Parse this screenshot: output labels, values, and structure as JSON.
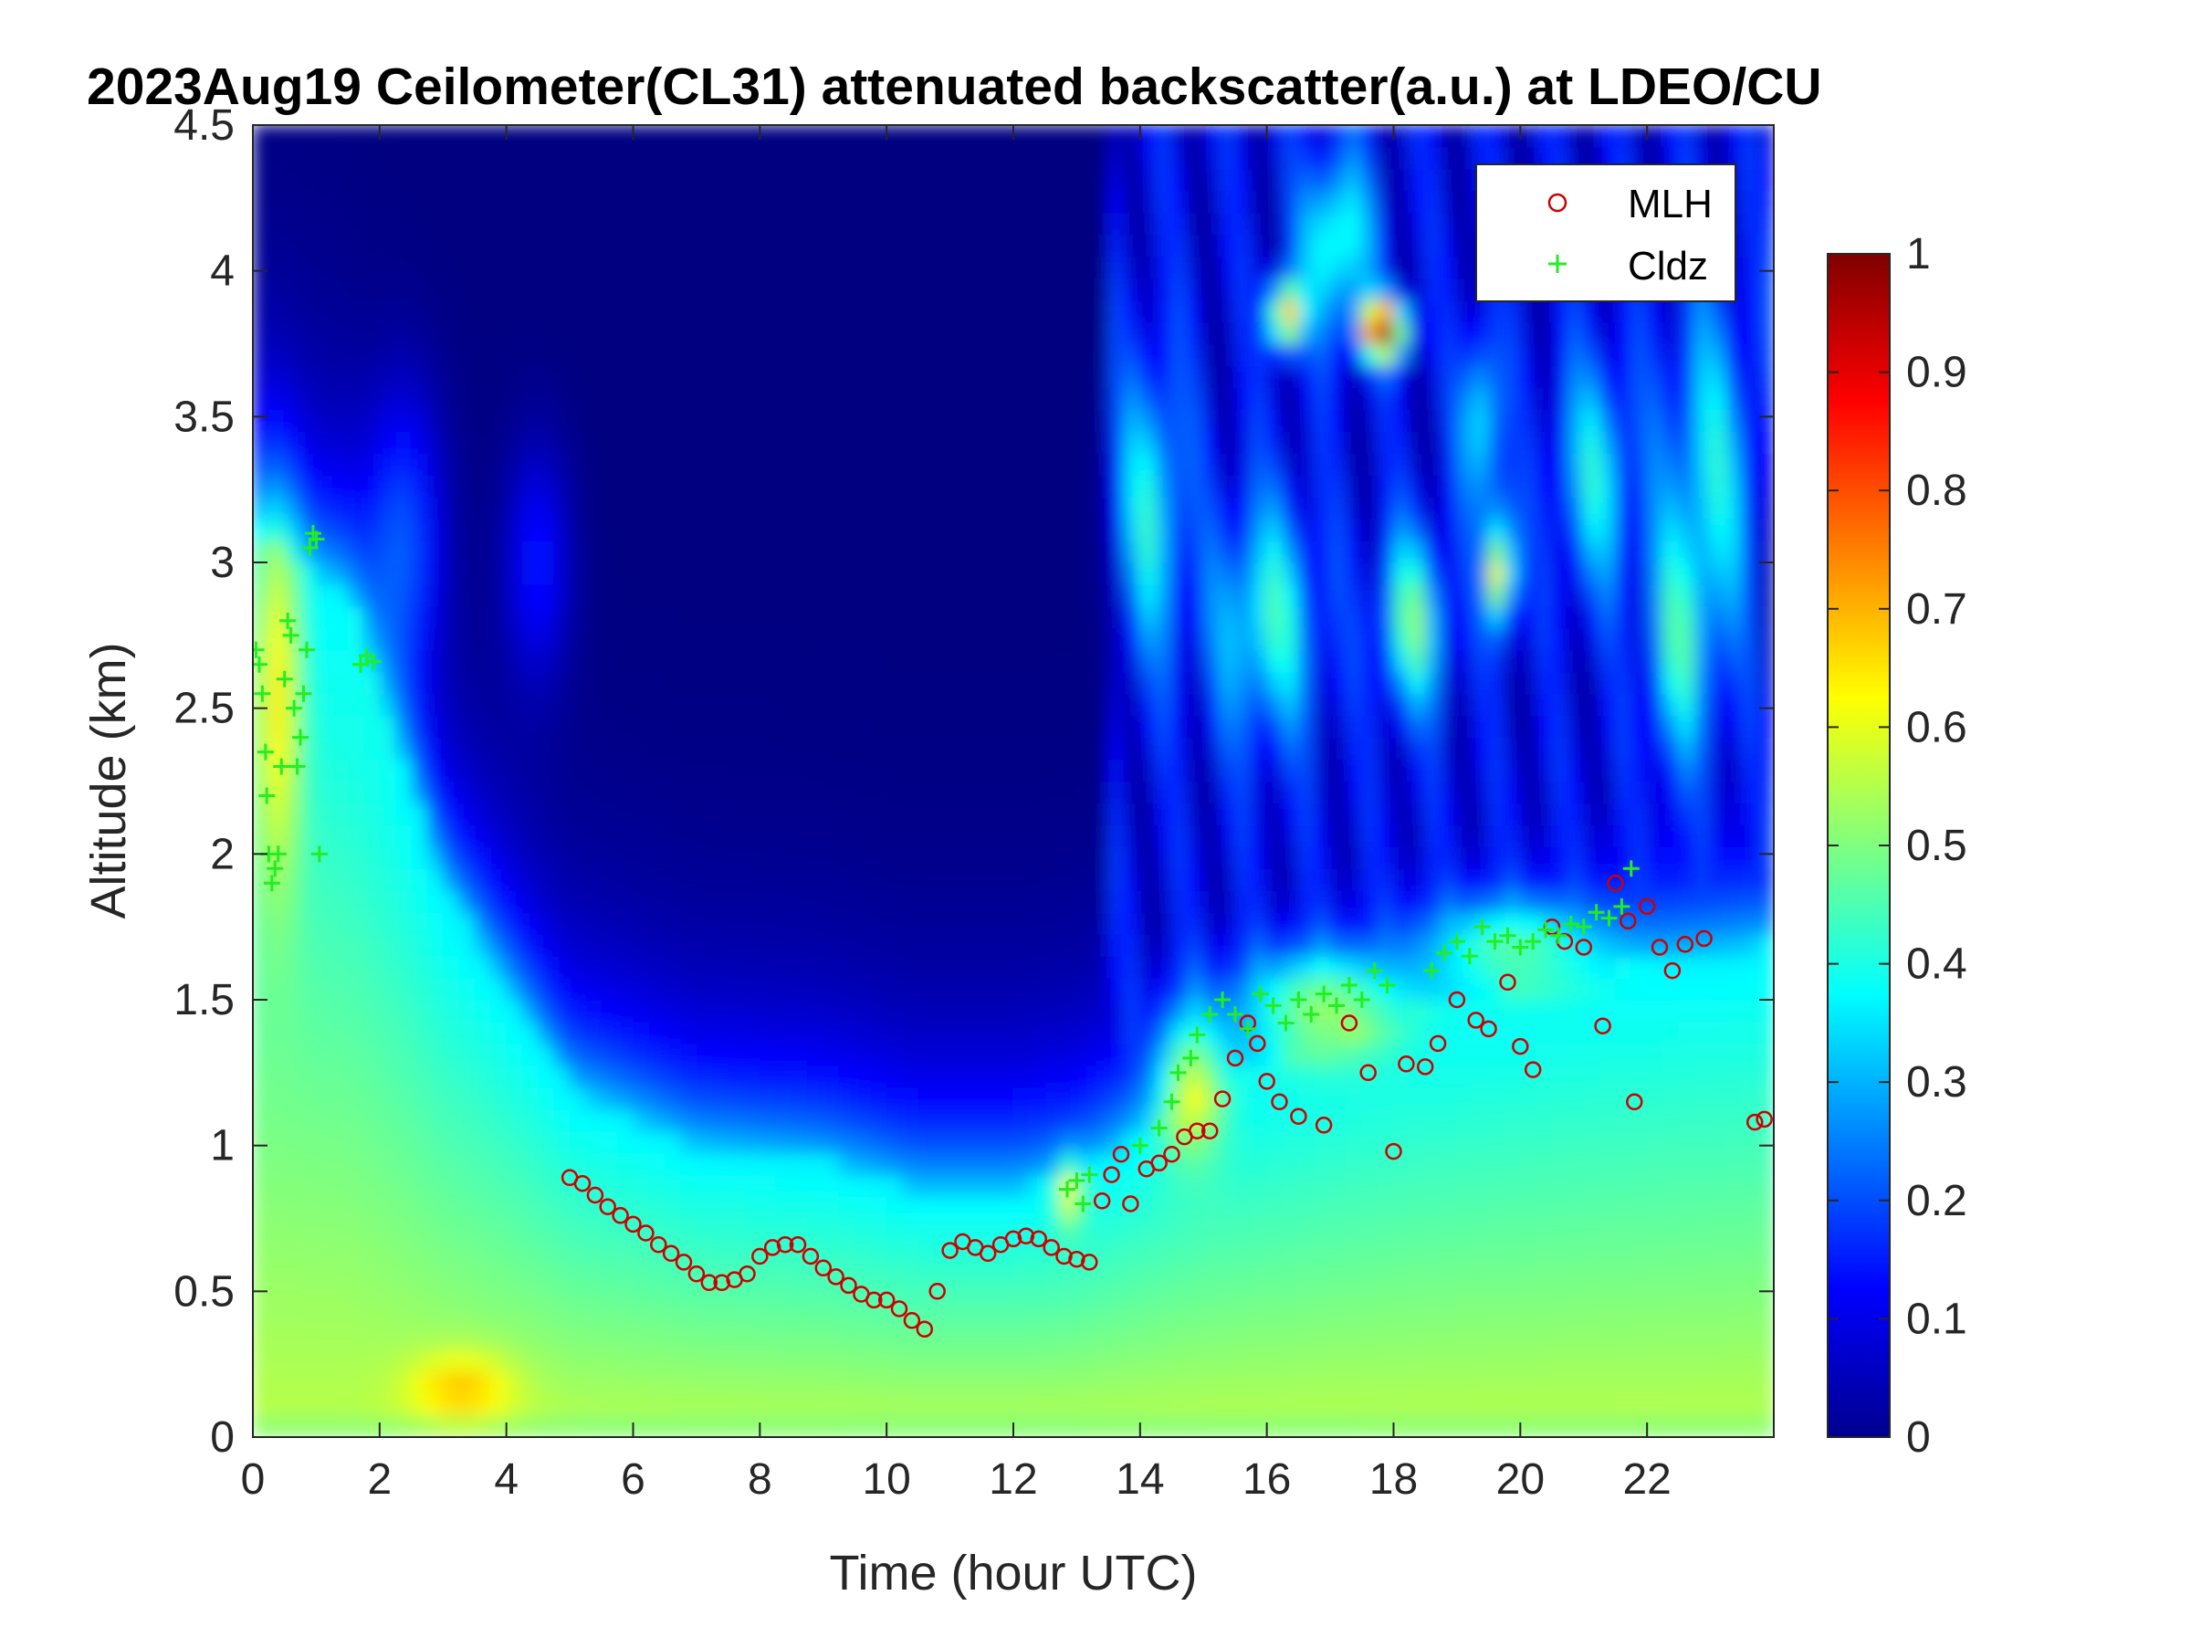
{
  "chart_data": {
    "type": "heatmap",
    "title": "2023Aug19 Ceilometer(CL31) attenuated backscatter(a.u.) at LDEO/CU",
    "xlabel": "Time (hour UTC)",
    "ylabel": "Altitude (km)",
    "xlim": [
      0,
      24
    ],
    "ylim": [
      0,
      4.5
    ],
    "xticks": [
      "0",
      "2",
      "4",
      "6",
      "8",
      "10",
      "12",
      "14",
      "16",
      "18",
      "20",
      "22"
    ],
    "yticks": [
      "0",
      "0.5",
      "1",
      "1.5",
      "2",
      "2.5",
      "3",
      "3.5",
      "4",
      "4.5"
    ],
    "colorbar": {
      "range": [
        0,
        1
      ],
      "ticks": [
        "0",
        "0.1",
        "0.2",
        "0.3",
        "0.4",
        "0.5",
        "0.6",
        "0.7",
        "0.8",
        "0.9",
        "1"
      ],
      "colormap": "jet"
    },
    "legend_position": "top-right",
    "series": [
      {
        "name": "MLH",
        "marker": "circle",
        "color": "#cc0000",
        "points": [
          [
            5.0,
            0.89
          ],
          [
            5.2,
            0.87
          ],
          [
            5.4,
            0.83
          ],
          [
            5.6,
            0.79
          ],
          [
            5.8,
            0.76
          ],
          [
            6.0,
            0.73
          ],
          [
            6.2,
            0.7
          ],
          [
            6.4,
            0.66
          ],
          [
            6.6,
            0.63
          ],
          [
            6.8,
            0.6
          ],
          [
            7.0,
            0.56
          ],
          [
            7.2,
            0.53
          ],
          [
            7.4,
            0.53
          ],
          [
            7.6,
            0.54
          ],
          [
            7.8,
            0.56
          ],
          [
            8.0,
            0.62
          ],
          [
            8.2,
            0.65
          ],
          [
            8.4,
            0.66
          ],
          [
            8.6,
            0.66
          ],
          [
            8.8,
            0.62
          ],
          [
            9.0,
            0.58
          ],
          [
            9.2,
            0.55
          ],
          [
            9.4,
            0.52
          ],
          [
            9.6,
            0.49
          ],
          [
            9.8,
            0.47
          ],
          [
            10.0,
            0.47
          ],
          [
            10.2,
            0.44
          ],
          [
            10.4,
            0.4
          ],
          [
            10.6,
            0.37
          ],
          [
            10.8,
            0.5
          ],
          [
            11.0,
            0.64
          ],
          [
            11.2,
            0.67
          ],
          [
            11.4,
            0.65
          ],
          [
            11.6,
            0.63
          ],
          [
            11.8,
            0.66
          ],
          [
            12.0,
            0.68
          ],
          [
            12.2,
            0.69
          ],
          [
            12.4,
            0.68
          ],
          [
            12.6,
            0.65
          ],
          [
            12.8,
            0.62
          ],
          [
            13.0,
            0.61
          ],
          [
            13.2,
            0.6
          ],
          [
            13.4,
            0.81
          ],
          [
            13.55,
            0.9
          ],
          [
            13.7,
            0.97
          ],
          [
            13.85,
            0.8
          ],
          [
            14.1,
            0.92
          ],
          [
            14.3,
            0.94
          ],
          [
            14.5,
            0.97
          ],
          [
            14.7,
            1.03
          ],
          [
            14.9,
            1.05
          ],
          [
            15.1,
            1.05
          ],
          [
            15.3,
            1.16
          ],
          [
            15.5,
            1.3
          ],
          [
            15.7,
            1.42
          ],
          [
            15.85,
            1.35
          ],
          [
            16.0,
            1.22
          ],
          [
            16.2,
            1.15
          ],
          [
            16.5,
            1.1
          ],
          [
            16.9,
            1.07
          ],
          [
            17.3,
            1.42
          ],
          [
            17.6,
            1.25
          ],
          [
            18.0,
            0.98
          ],
          [
            18.2,
            1.28
          ],
          [
            18.5,
            1.27
          ],
          [
            18.7,
            1.35
          ],
          [
            19.0,
            1.5
          ],
          [
            19.3,
            1.43
          ],
          [
            19.5,
            1.4
          ],
          [
            19.8,
            1.56
          ],
          [
            20.0,
            1.34
          ],
          [
            20.2,
            1.26
          ],
          [
            20.5,
            1.75
          ],
          [
            20.7,
            1.7
          ],
          [
            21.0,
            1.68
          ],
          [
            21.3,
            1.41
          ],
          [
            21.5,
            1.9
          ],
          [
            21.7,
            1.77
          ],
          [
            21.8,
            1.15
          ],
          [
            22.0,
            1.82
          ],
          [
            22.2,
            1.68
          ],
          [
            22.4,
            1.6
          ],
          [
            22.6,
            1.69
          ],
          [
            22.9,
            1.71
          ],
          [
            23.7,
            1.08
          ],
          [
            23.85,
            1.09
          ]
        ]
      },
      {
        "name": "Cldz",
        "marker": "plus",
        "color": "#22ee22",
        "points": [
          [
            0.05,
            2.7
          ],
          [
            0.1,
            2.65
          ],
          [
            0.15,
            2.55
          ],
          [
            0.2,
            2.35
          ],
          [
            0.22,
            2.2
          ],
          [
            0.25,
            2.0
          ],
          [
            0.3,
            1.9
          ],
          [
            0.35,
            1.95
          ],
          [
            0.4,
            2.0
          ],
          [
            0.45,
            2.3
          ],
          [
            0.5,
            2.6
          ],
          [
            0.55,
            2.8
          ],
          [
            0.6,
            2.75
          ],
          [
            0.65,
            2.5
          ],
          [
            0.7,
            2.3
          ],
          [
            0.75,
            2.4
          ],
          [
            0.8,
            2.55
          ],
          [
            0.85,
            2.7
          ],
          [
            0.9,
            3.05
          ],
          [
            0.95,
            3.1
          ],
          [
            1.0,
            3.08
          ],
          [
            1.05,
            2.0
          ],
          [
            1.7,
            2.65
          ],
          [
            1.8,
            2.68
          ],
          [
            1.9,
            2.66
          ],
          [
            12.85,
            0.85
          ],
          [
            13.0,
            0.88
          ],
          [
            13.1,
            0.8
          ],
          [
            13.2,
            0.9
          ],
          [
            14.0,
            1.0
          ],
          [
            14.3,
            1.06
          ],
          [
            14.5,
            1.15
          ],
          [
            14.6,
            1.25
          ],
          [
            14.8,
            1.3
          ],
          [
            14.9,
            1.38
          ],
          [
            15.1,
            1.45
          ],
          [
            15.3,
            1.5
          ],
          [
            15.5,
            1.45
          ],
          [
            15.7,
            1.4
          ],
          [
            15.9,
            1.52
          ],
          [
            16.1,
            1.48
          ],
          [
            16.3,
            1.42
          ],
          [
            16.5,
            1.5
          ],
          [
            16.7,
            1.45
          ],
          [
            16.9,
            1.52
          ],
          [
            17.1,
            1.48
          ],
          [
            17.3,
            1.55
          ],
          [
            17.5,
            1.5
          ],
          [
            17.7,
            1.6
          ],
          [
            17.9,
            1.55
          ],
          [
            18.6,
            1.6
          ],
          [
            18.8,
            1.66
          ],
          [
            19.0,
            1.7
          ],
          [
            19.2,
            1.65
          ],
          [
            19.4,
            1.75
          ],
          [
            19.6,
            1.7
          ],
          [
            19.8,
            1.72
          ],
          [
            20.0,
            1.68
          ],
          [
            20.2,
            1.7
          ],
          [
            20.4,
            1.74
          ],
          [
            20.6,
            1.72
          ],
          [
            20.8,
            1.76
          ],
          [
            21.0,
            1.75
          ],
          [
            21.2,
            1.8
          ],
          [
            21.4,
            1.78
          ],
          [
            21.6,
            1.82
          ],
          [
            21.75,
            1.95
          ]
        ]
      }
    ]
  }
}
